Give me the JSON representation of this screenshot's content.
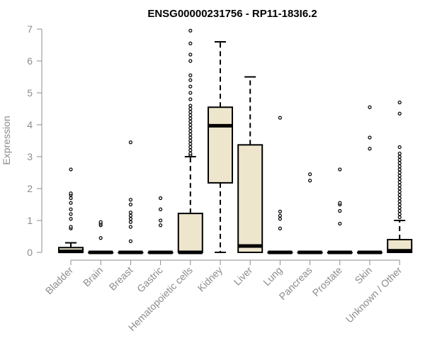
{
  "chart_data": {
    "type": "box",
    "title": "ENSG00000231756 - RP11-183I6.2",
    "xlabel": "",
    "ylabel": "Expression",
    "ylim": [
      0,
      7
    ],
    "yticks": [
      0,
      1,
      2,
      3,
      4,
      5,
      6,
      7
    ],
    "colors": {
      "box_fill": "#ede5cc",
      "stroke": "#000000",
      "axis": "#8c8c8c"
    },
    "categories": [
      "Bladder",
      "Brain",
      "Breast",
      "Gastric",
      "Hematopoietic cells",
      "Kidney",
      "Liver",
      "Lung",
      "Pancreas",
      "Prostate",
      "Skin",
      "Unknown / Other"
    ],
    "boxes": [
      {
        "min": 0,
        "q1": 0,
        "median": 0.03,
        "q3": 0.15,
        "max": 0.3,
        "outliers": [
          0.75,
          0.8,
          1.05,
          1.2,
          1.35,
          1.55,
          1.7,
          1.8,
          1.85,
          2.6
        ]
      },
      {
        "min": 0,
        "q1": 0,
        "median": 0,
        "q3": 0,
        "max": 0,
        "outliers": [
          0.45,
          0.85,
          0.9,
          0.95
        ]
      },
      {
        "min": 0,
        "q1": 0,
        "median": 0,
        "q3": 0,
        "max": 0,
        "outliers": [
          0.35,
          0.8,
          0.95,
          1.05,
          1.15,
          1.25,
          1.5,
          1.65,
          3.45
        ]
      },
      {
        "min": 0,
        "q1": 0,
        "median": 0,
        "q3": 0,
        "max": 0,
        "outliers": [
          0.85,
          1.0,
          1.35,
          1.7
        ]
      },
      {
        "min": 0,
        "q1": 0,
        "median": 0,
        "q3": 1.22,
        "max": 3.0,
        "outliers": [
          3.05,
          3.1,
          3.2,
          3.3,
          3.4,
          3.5,
          3.6,
          3.7,
          3.8,
          3.9,
          4.0,
          4.1,
          4.2,
          4.3,
          4.4,
          4.5,
          4.6,
          4.8,
          5.0,
          5.2,
          5.4,
          5.55,
          6.0,
          6.2,
          6.55,
          6.95
        ]
      },
      {
        "min": 0,
        "q1": 2.18,
        "median": 3.97,
        "q3": 4.55,
        "max": 6.6,
        "outliers": []
      },
      {
        "min": 0,
        "q1": 0,
        "median": 0.2,
        "q3": 3.37,
        "max": 5.5,
        "outliers": []
      },
      {
        "min": 0,
        "q1": 0,
        "median": 0,
        "q3": 0,
        "max": 0,
        "outliers": [
          0.75,
          1.05,
          1.15,
          1.28,
          4.22
        ]
      },
      {
        "min": 0,
        "q1": 0,
        "median": 0,
        "q3": 0,
        "max": 0,
        "outliers": [
          2.25,
          2.45
        ]
      },
      {
        "min": 0,
        "q1": 0,
        "median": 0,
        "q3": 0,
        "max": 0,
        "outliers": [
          0.9,
          1.3,
          1.5,
          1.55,
          2.6
        ]
      },
      {
        "min": 0,
        "q1": 0,
        "median": 0,
        "q3": 0,
        "max": 0,
        "outliers": [
          3.25,
          3.6,
          4.55
        ]
      },
      {
        "min": 0,
        "q1": 0,
        "median": 0.05,
        "q3": 0.4,
        "max": 1.0,
        "outliers": [
          1.1,
          1.2,
          1.3,
          1.4,
          1.5,
          1.6,
          1.7,
          1.8,
          1.9,
          2.0,
          2.1,
          2.2,
          2.3,
          2.4,
          2.5,
          2.6,
          2.7,
          2.8,
          2.9,
          3.0,
          3.1,
          3.3,
          4.35,
          4.7
        ]
      }
    ]
  }
}
